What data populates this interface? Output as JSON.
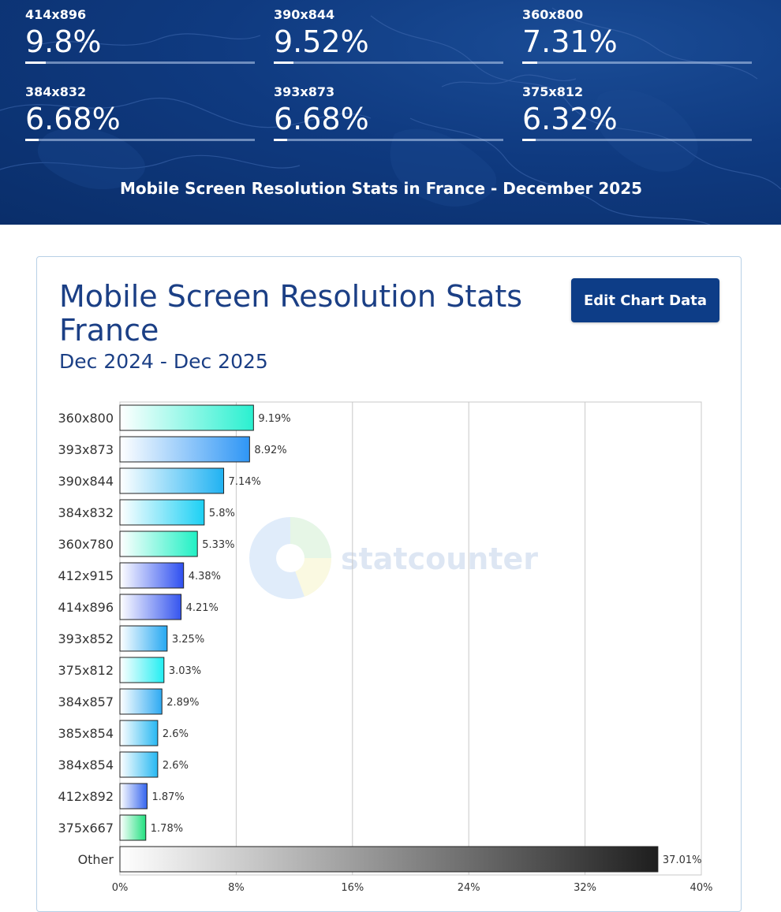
{
  "hero": {
    "stats": [
      {
        "label": "414x896",
        "value": "9.8%",
        "pct": 9.8
      },
      {
        "label": "390x844",
        "value": "9.52%",
        "pct": 9.52
      },
      {
        "label": "360x800",
        "value": "7.31%",
        "pct": 7.31
      },
      {
        "label": "384x832",
        "value": "6.68%",
        "pct": 6.68
      },
      {
        "label": "393x873",
        "value": "6.68%",
        "pct": 6.68
      },
      {
        "label": "375x812",
        "value": "6.32%",
        "pct": 6.32
      }
    ],
    "caption": "Mobile Screen Resolution Stats in France - December 2025"
  },
  "card": {
    "title": "Mobile Screen Resolution Stats France",
    "subtitle": "Dec 2024 - Dec 2025",
    "edit_label": "Edit Chart Data",
    "edit_color": "#0d3d87",
    "watermark": "statcounter"
  },
  "chart_data": {
    "type": "bar",
    "orientation": "horizontal",
    "title": "Mobile Screen Resolution Stats France",
    "subtitle": "Dec 2024 - Dec 2025",
    "categories": [
      "360x800",
      "393x873",
      "390x844",
      "384x832",
      "360x780",
      "412x915",
      "414x896",
      "393x852",
      "375x812",
      "384x857",
      "385x854",
      "384x854",
      "412x892",
      "375x667",
      "Other"
    ],
    "values": [
      9.19,
      8.92,
      7.14,
      5.8,
      5.33,
      4.38,
      4.21,
      3.25,
      3.03,
      2.89,
      2.6,
      2.6,
      1.87,
      1.78,
      37.01
    ],
    "value_labels": [
      "9.19%",
      "8.92%",
      "7.14%",
      "5.8%",
      "5.33%",
      "4.38%",
      "4.21%",
      "3.25%",
      "3.03%",
      "2.89%",
      "2.6%",
      "2.6%",
      "1.87%",
      "1.78%",
      "37.01%"
    ],
    "bar_colors": [
      "#2af0d0",
      "#2f96f5",
      "#20b2f2",
      "#1cd0f4",
      "#20f0c4",
      "#2e4ff0",
      "#3555ee",
      "#25a8f2",
      "#22eef2",
      "#2eaaf2",
      "#28b8f2",
      "#26b8f2",
      "#3565ee",
      "#22e080",
      "#1e1e1e"
    ],
    "xlim": [
      0,
      40
    ],
    "xticks": [
      "0%",
      "8%",
      "16%",
      "24%",
      "32%",
      "40%"
    ],
    "xtick_values": [
      0,
      8,
      16,
      24,
      32,
      40
    ],
    "grid": true,
    "xlabel": "",
    "ylabel": ""
  }
}
